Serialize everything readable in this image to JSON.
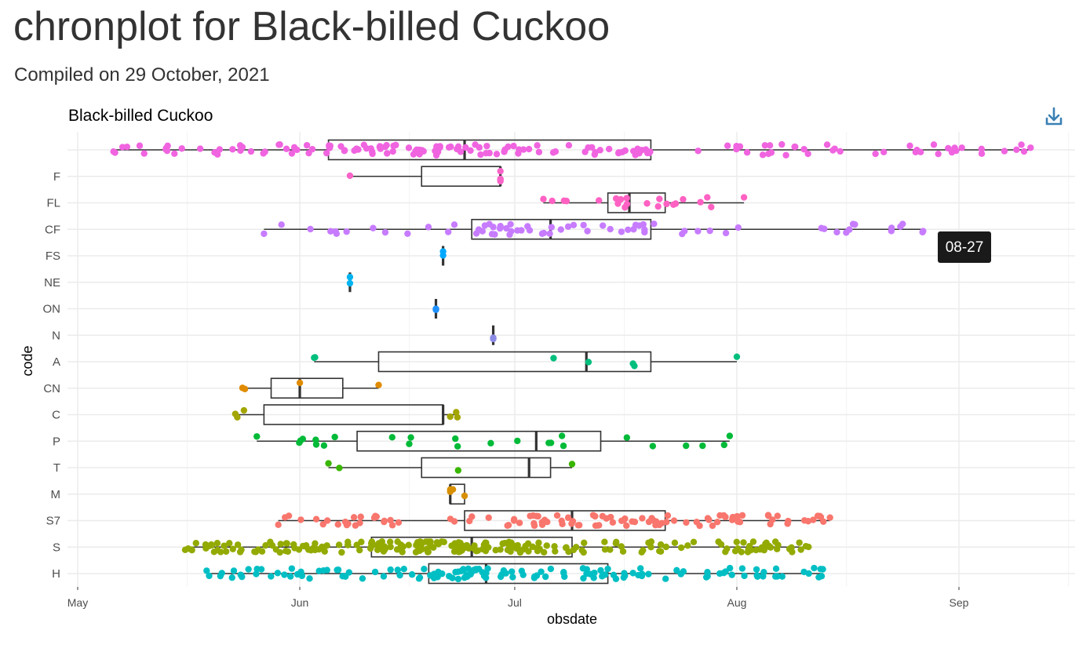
{
  "page": {
    "title": "chronplot for Black-billed Cuckoo",
    "subtitle": "Compiled on 29 October, 2021"
  },
  "toolbar": {
    "download_icon": "download-icon"
  },
  "tooltip": {
    "text": "08-27",
    "row": "CF"
  },
  "colors": {
    "grid": "#ebebeb",
    "box": "#333333",
    "tooltip_bg": "#1a1a1a",
    "icon": "#3a80b5"
  },
  "chart_data": {
    "type": "boxplot-jitter",
    "title": "Black-billed Cuckoo",
    "xlabel": "obsdate",
    "ylabel": "code",
    "x_ticks": [
      "May",
      "Jun",
      "Jul",
      "Aug",
      "Sep"
    ],
    "xlim": [
      "2021-05-01",
      "2021-09-15"
    ],
    "grid": true,
    "series": [
      {
        "code": "",
        "color": "#f064e0",
        "min": "05-06",
        "q1": "06-05",
        "median": "06-24",
        "q3": "07-20",
        "max": "09-11",
        "n": 160
      },
      {
        "code": "F",
        "color": "#f864c8",
        "min": "06-08",
        "q1": "06-18",
        "median": "06-29",
        "q3": "06-29",
        "max": "06-29",
        "n": 5
      },
      {
        "code": "FL",
        "color": "#ff61c3",
        "min": "07-05",
        "q1": "07-14",
        "median": "07-17",
        "q3": "07-22",
        "max": "08-02",
        "n": 22
      },
      {
        "code": "CF",
        "color": "#c77cff",
        "min": "05-27",
        "q1": "06-25",
        "median": "07-06",
        "q3": "07-20",
        "max": "08-27",
        "n": 70
      },
      {
        "code": "FS",
        "color": "#00a9ff",
        "min": "06-21",
        "q1": "06-21",
        "median": "06-21",
        "q3": "06-21",
        "max": "06-21",
        "n": 1
      },
      {
        "code": "NE",
        "color": "#00b4ef",
        "min": "06-08",
        "q1": "06-08",
        "median": "06-08",
        "q3": "06-08",
        "max": "06-08",
        "n": 1
      },
      {
        "code": "ON",
        "color": "#1e90ff",
        "min": "06-20",
        "q1": "06-20",
        "median": "06-20",
        "q3": "06-20",
        "max": "06-20",
        "n": 1
      },
      {
        "code": "N",
        "color": "#8c8ce6",
        "min": "06-28",
        "q1": "06-28",
        "median": "06-28",
        "q3": "06-28",
        "max": "06-28",
        "n": 1
      },
      {
        "code": "A",
        "color": "#00bf7d",
        "min": "06-03",
        "q1": "06-12",
        "median": "07-11",
        "q3": "07-20",
        "max": "08-01",
        "n": 7
      },
      {
        "code": "CN",
        "color": "#e08b00",
        "min": "05-24",
        "q1": "05-28",
        "median": "06-01",
        "q3": "06-07",
        "max": "06-12",
        "n": 4
      },
      {
        "code": "C",
        "color": "#a3a500",
        "min": "05-23",
        "q1": "05-27",
        "median": "06-21",
        "q3": "06-21",
        "max": "06-23",
        "n": 6
      },
      {
        "code": "P",
        "color": "#00ba38",
        "min": "05-26",
        "q1": "06-09",
        "median": "07-04",
        "q3": "07-13",
        "max": "07-31",
        "n": 25
      },
      {
        "code": "T",
        "color": "#39b600",
        "min": "06-05",
        "q1": "06-18",
        "median": "07-03",
        "q3": "07-06",
        "max": "07-09",
        "n": 4
      },
      {
        "code": "M",
        "color": "#d89000",
        "min": "06-22",
        "q1": "06-22",
        "median": "06-22",
        "q3": "06-24",
        "max": "06-24",
        "n": 4
      },
      {
        "code": "S7",
        "color": "#f8766d",
        "min": "05-29",
        "q1": "06-24",
        "median": "07-09",
        "q3": "07-22",
        "max": "08-14",
        "n": 110
      },
      {
        "code": "S",
        "color": "#93aa00",
        "min": "05-16",
        "q1": "06-11",
        "median": "06-25",
        "q3": "07-09",
        "max": "08-11",
        "n": 230
      },
      {
        "code": "H",
        "color": "#00bfc4",
        "min": "05-19",
        "q1": "06-19",
        "median": "06-27",
        "q3": "07-14",
        "max": "08-13",
        "n": 140
      }
    ]
  }
}
